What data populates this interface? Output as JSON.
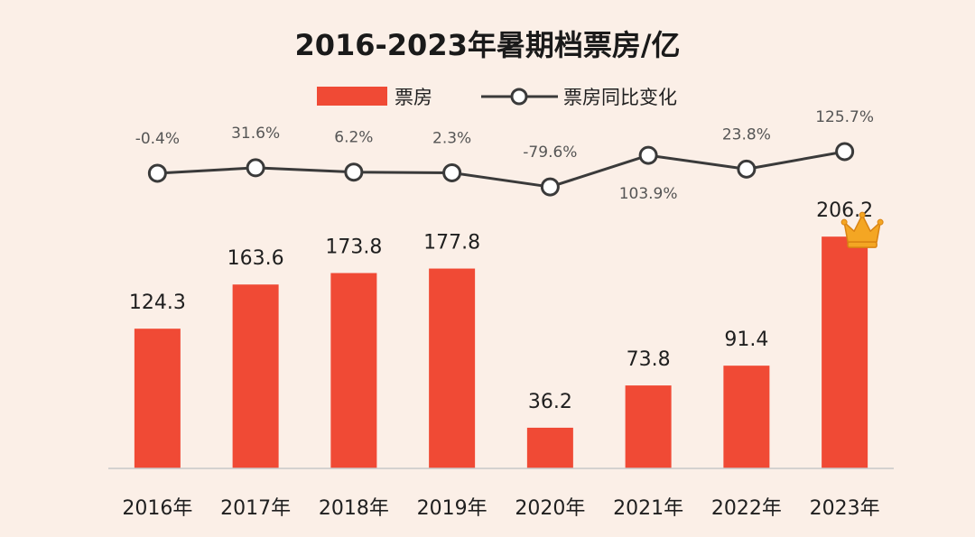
{
  "chart_data": {
    "type": "bar+line",
    "title": "2016-2023年暑期档票房/亿",
    "categories": [
      "2016年",
      "2017年",
      "2018年",
      "2019年",
      "2020年",
      "2021年",
      "2022年",
      "2023年"
    ],
    "series": [
      {
        "name": "票房",
        "type": "bar",
        "values": [
          124.3,
          163.6,
          173.8,
          177.8,
          36.2,
          73.8,
          91.4,
          206.2
        ],
        "labels": [
          "124.3",
          "163.6",
          "173.8",
          "177.8",
          "36.2",
          "73.8",
          "91.4",
          "206.2"
        ],
        "color": "#f04a35"
      },
      {
        "name": "票房同比变化",
        "type": "line",
        "values": [
          -0.4,
          31.6,
          6.2,
          2.3,
          -79.6,
          103.9,
          23.8,
          125.7
        ],
        "labels": [
          "-0.4%",
          "31.6%",
          "6.2%",
          "2.3%",
          "-79.6%",
          "103.9%",
          "23.8%",
          "125.7%"
        ],
        "label_positions": [
          "above",
          "above",
          "above",
          "above",
          "above",
          "below",
          "above",
          "above"
        ],
        "color": "#3a3a3a"
      }
    ],
    "ylim": [
      0,
      220
    ],
    "line_ylim": [
      -200,
      220
    ],
    "xlabel": "",
    "ylabel": "",
    "grid": false,
    "legend": "top-center",
    "highlight": {
      "category": "2023年",
      "icon": "crown-icon",
      "color": "#f4a623"
    }
  }
}
